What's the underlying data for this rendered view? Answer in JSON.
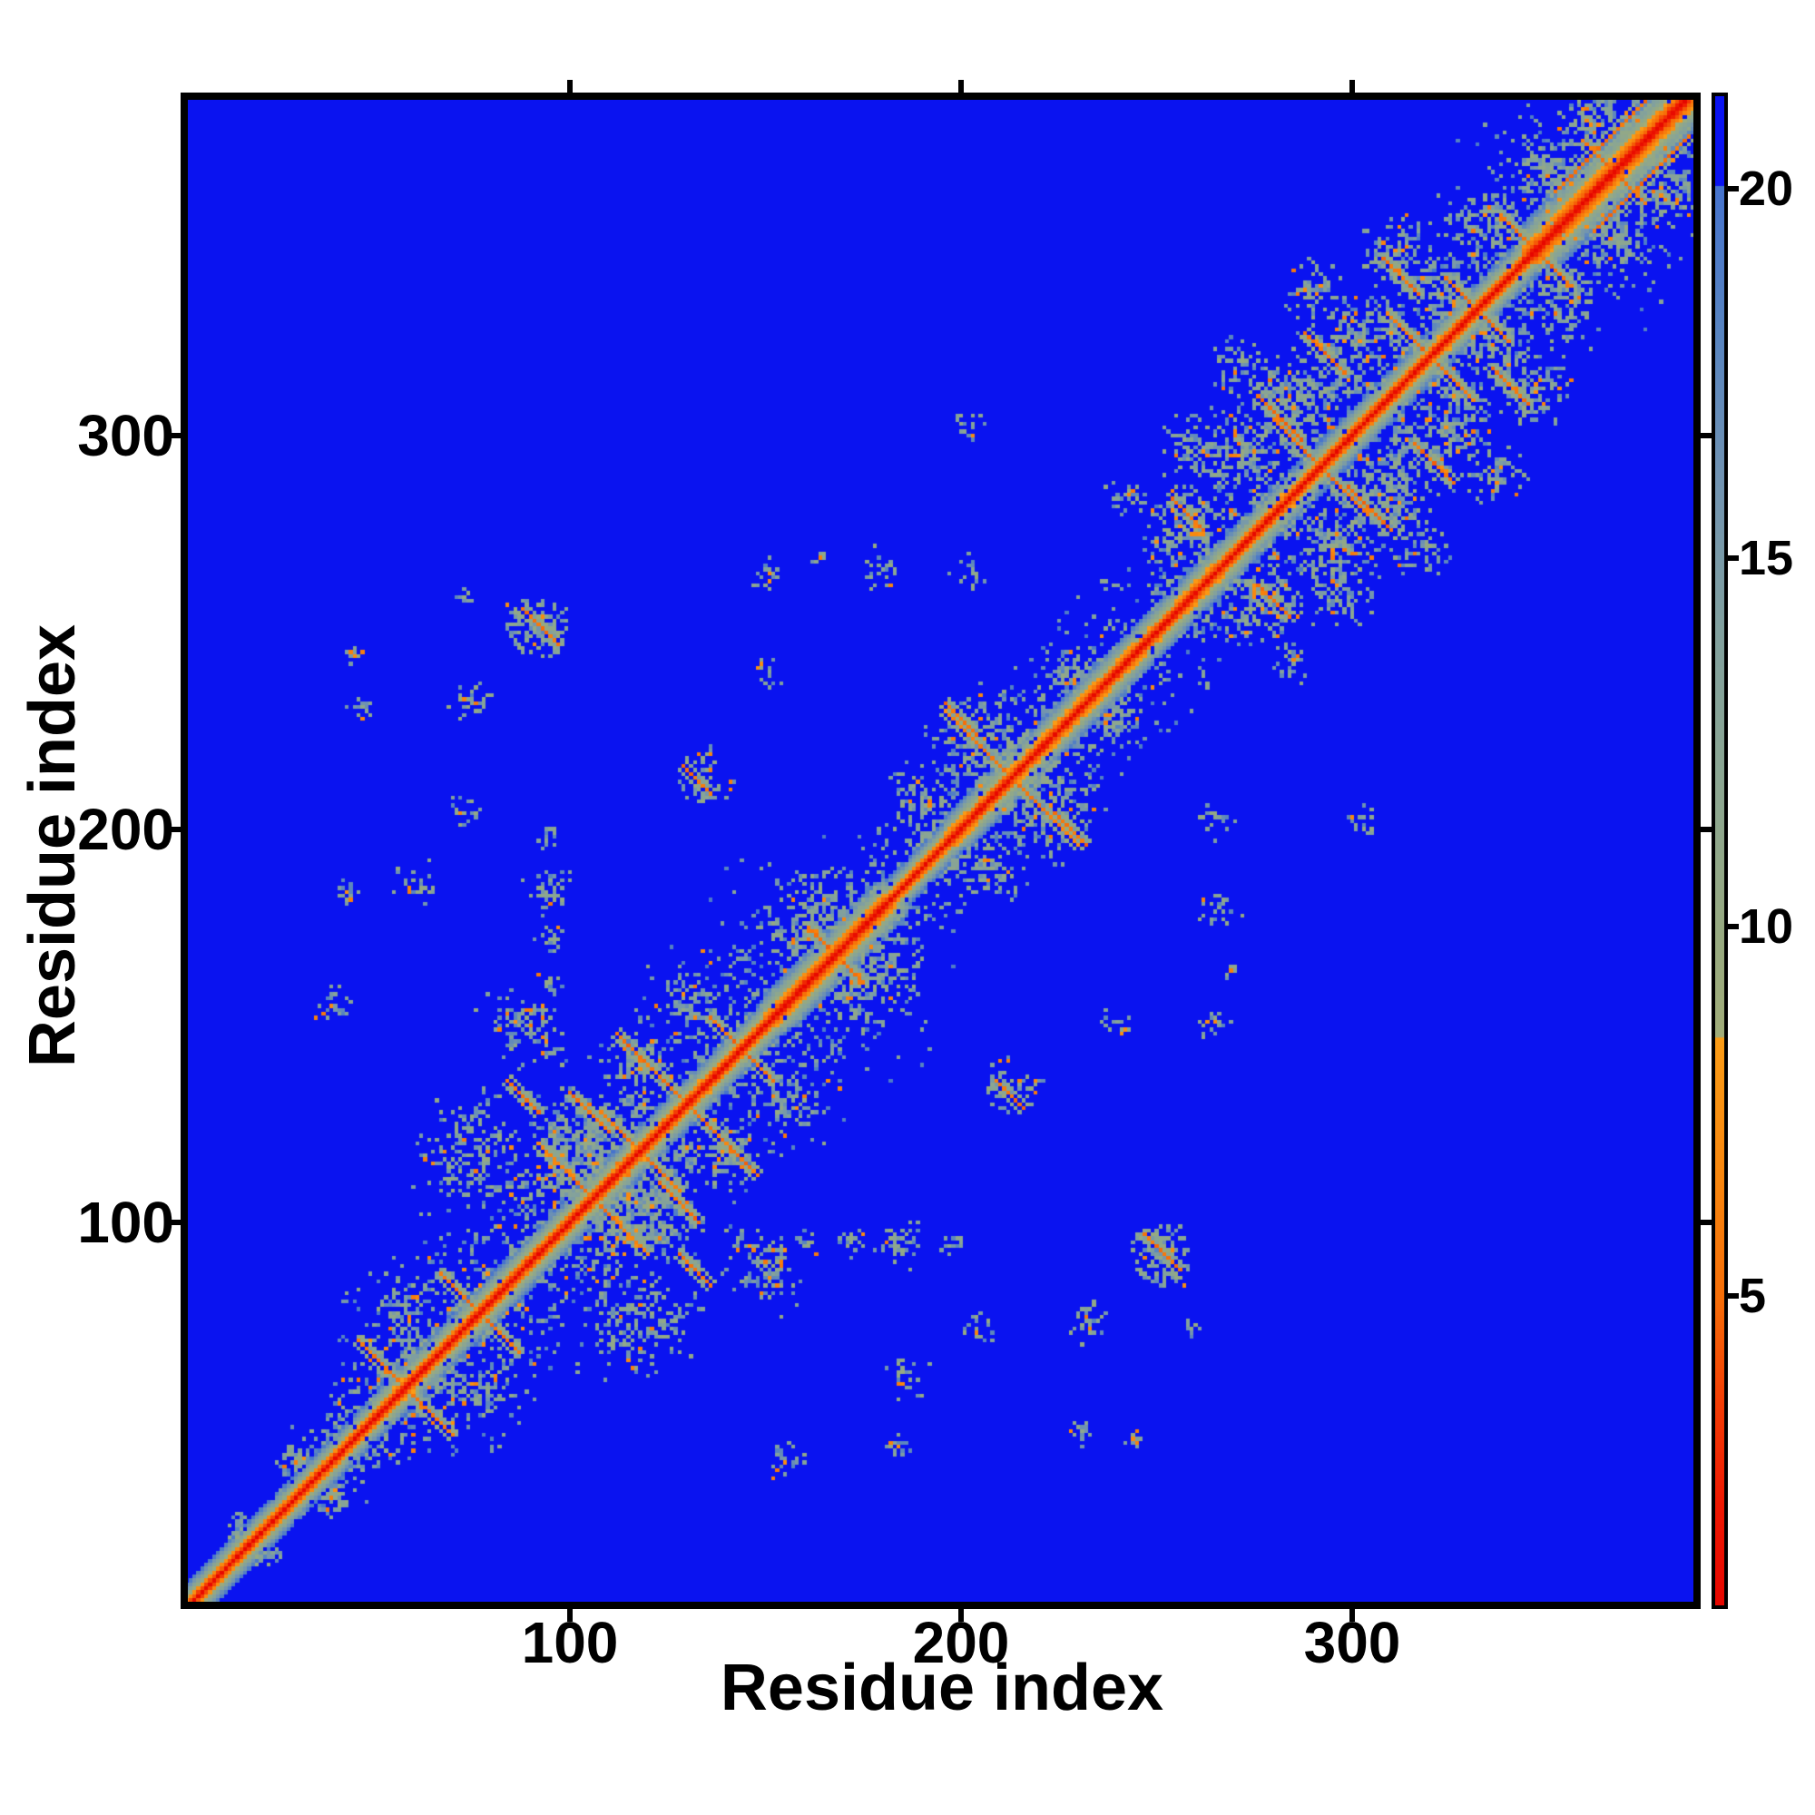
{
  "figure": {
    "background_color": "#ffffff",
    "frame_color": "#000000",
    "heatmap_background_color": "#0a13f0"
  },
  "chart_data": {
    "type": "heatmap",
    "subtype": "protein-residue-distance-matrix",
    "title": "",
    "xlabel": "Residue index",
    "ylabel": "Residue index",
    "x_ticks": [
      100,
      200,
      300
    ],
    "y_ticks": [
      100,
      200,
      300
    ],
    "x_range": [
      1,
      387
    ],
    "y_range": [
      1,
      387
    ],
    "n_residues": 387,
    "symmetric": true,
    "grid": false,
    "colorbar": {
      "orientation": "vertical",
      "tick_labels": [
        20,
        15,
        10,
        5
      ],
      "value_range": [
        0.85,
        21.2
      ]
    },
    "colormap_stops": [
      [
        0.8,
        "#e60600"
      ],
      [
        2.2,
        "#ee1802"
      ],
      [
        3.6,
        "#f33e05"
      ],
      [
        5.0,
        "#f66e08"
      ],
      [
        6.6,
        "#f8860e"
      ],
      [
        8.5,
        "#fa9c16"
      ],
      [
        8.51,
        "#a1ad79"
      ],
      [
        10.0,
        "#96a981"
      ],
      [
        12.0,
        "#8ba692"
      ],
      [
        14.0,
        "#81a09e"
      ],
      [
        16.0,
        "#7193b1"
      ],
      [
        18.0,
        "#5884c0"
      ],
      [
        19.99,
        "#4673cd"
      ],
      [
        20.0,
        "#0a13f0"
      ],
      [
        21.6,
        "#0a13f0"
      ]
    ],
    "background_value": 21.5,
    "rng_seed": 1234,
    "diagonal_segments": [
      [
        1,
        50,
        3.0
      ],
      [
        50,
        150,
        2.7
      ],
      [
        150,
        180,
        2.2
      ],
      [
        180,
        196,
        3.0
      ],
      [
        196,
        242,
        2.5
      ],
      [
        242,
        268,
        2.5
      ],
      [
        268,
        344,
        2.7
      ],
      [
        344,
        388,
        1.8
      ]
    ],
    "hairpin_contacts": [
      [
        58,
        12
      ],
      [
        77,
        10
      ],
      [
        106,
        14
      ],
      [
        118,
        10
      ],
      [
        130,
        12
      ],
      [
        144,
        8
      ],
      [
        168,
        7
      ],
      [
        213,
        17
      ],
      [
        292,
        12
      ],
      [
        320,
        11
      ],
      [
        332,
        8
      ],
      [
        347,
        9
      ],
      [
        367,
        8
      ]
    ],
    "antiparallel_contacts": [
      [
        88,
        256,
        9
      ],
      [
        100,
        133,
        10
      ],
      [
        84,
        136,
        8
      ],
      [
        112,
        148,
        7
      ],
      [
        129,
        216,
        7
      ],
      [
        196,
        232,
        8
      ],
      [
        254,
        284,
        8
      ],
      [
        276,
        310,
        11
      ],
      [
        288,
        326,
        10
      ],
      [
        308,
        345,
        9
      ]
    ],
    "parallel_contacts": [
      [
        352,
        362,
        24
      ]
    ],
    "contact_clusters": [
      [
        15,
        22,
        5,
        30
      ],
      [
        30,
        40,
        5,
        30
      ],
      [
        58,
        77,
        9,
        70
      ],
      [
        75,
        118,
        15,
        150
      ],
      [
        100,
        120,
        12,
        150
      ],
      [
        88,
        150,
        11,
        95
      ],
      [
        118,
        140,
        9,
        85
      ],
      [
        106,
        106,
        14,
        110
      ],
      [
        130,
        155,
        8,
        70
      ],
      [
        163,
        178,
        10,
        140
      ],
      [
        95,
        145,
        4,
        16
      ],
      [
        95,
        160,
        4,
        16
      ],
      [
        95,
        172,
        4,
        16
      ],
      [
        95,
        185,
        7,
        45
      ],
      [
        95,
        198,
        4,
        14
      ],
      [
        60,
        186,
        6,
        30
      ],
      [
        43,
        183,
        4,
        16
      ],
      [
        75,
        232,
        6,
        30
      ],
      [
        47,
        231,
        4,
        14
      ],
      [
        92,
        251,
        8,
        70
      ],
      [
        73,
        205,
        5,
        20
      ],
      [
        150,
        264,
        5,
        20
      ],
      [
        180,
        266,
        6,
        25
      ],
      [
        202,
        265,
        5,
        18
      ],
      [
        202,
        302,
        5,
        16
      ],
      [
        242,
        285,
        6,
        26
      ],
      [
        40,
        155,
        6,
        22
      ],
      [
        150,
        240,
        5,
        16
      ],
      [
        205,
        222,
        13,
        140
      ],
      [
        190,
        207,
        9,
        80
      ],
      [
        228,
        240,
        8,
        60
      ],
      [
        135,
        213,
        8,
        55
      ],
      [
        256,
        276,
        10,
        90
      ],
      [
        270,
        295,
        12,
        120
      ],
      [
        285,
        310,
        13,
        130
      ],
      [
        300,
        325,
        12,
        120
      ],
      [
        258,
        298,
        8,
        48
      ],
      [
        272,
        318,
        9,
        60
      ],
      [
        290,
        336,
        9,
        65
      ],
      [
        310,
        348,
        9,
        75
      ],
      [
        322,
        338,
        9,
        75
      ],
      [
        335,
        355,
        9,
        90
      ],
      [
        350,
        368,
        9,
        90
      ],
      [
        362,
        380,
        8,
        75
      ],
      [
        357,
        357,
        10,
        95
      ],
      [
        375,
        375,
        8,
        70
      ],
      [
        44,
        245,
        3,
        9
      ],
      [
        74,
        259,
        3,
        9
      ],
      [
        163,
        269,
        3,
        9
      ]
    ],
    "contact_rings": [
      [
        92,
        251,
        7,
        45
      ],
      [
        213,
        222,
        12,
        70
      ],
      [
        106,
        120,
        11,
        55
      ],
      [
        292,
        304,
        10,
        55
      ],
      [
        320,
        306,
        10,
        50
      ],
      [
        268,
        288,
        9,
        45
      ],
      [
        163,
        178,
        12,
        55
      ],
      [
        85,
        120,
        13,
        50
      ],
      [
        118,
        118,
        12,
        50
      ]
    ],
    "noise_regions": [
      [
        38,
        152,
        38,
        600
      ],
      [
        150,
        245,
        26,
        300
      ],
      [
        248,
        387,
        40,
        850
      ],
      [
        25,
        60,
        14,
        70
      ]
    ]
  }
}
